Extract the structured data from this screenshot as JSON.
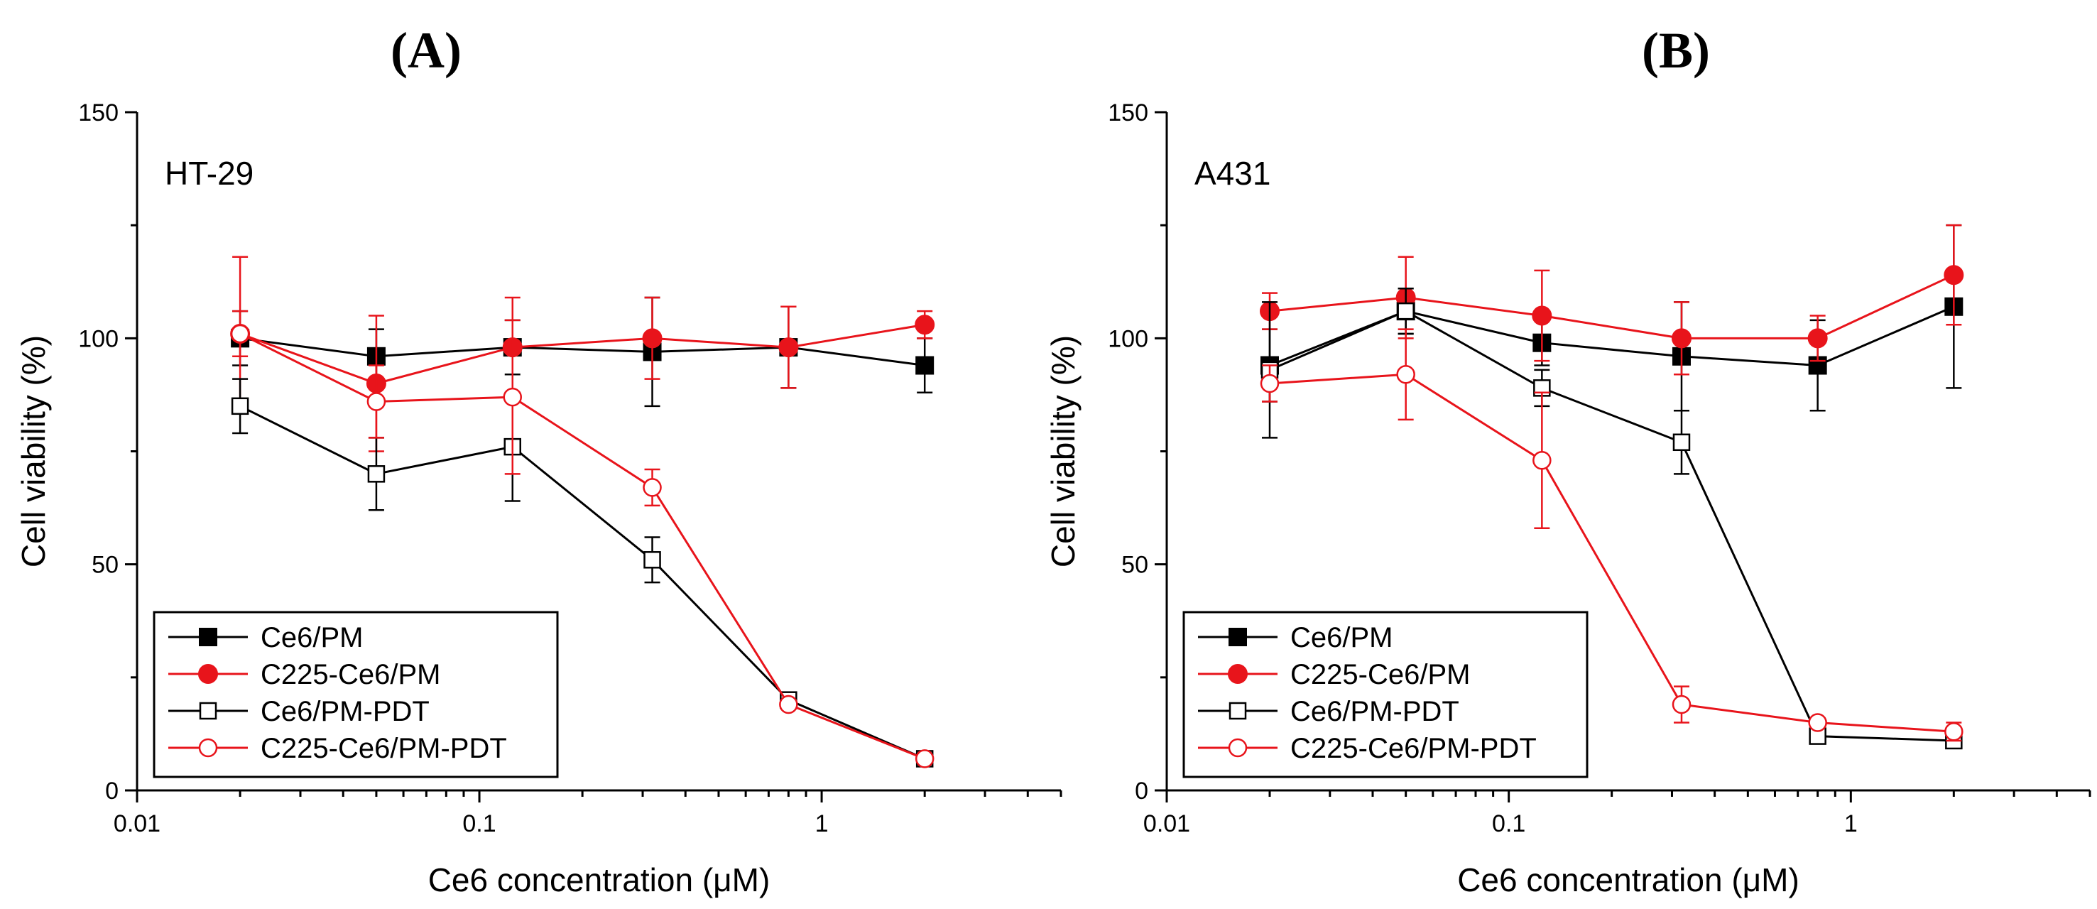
{
  "chart_data": [
    {
      "type": "line",
      "panel_label": "A",
      "cell_line": "HT-29",
      "xlabel": "Ce6 concentration (μM)",
      "ylabel": "Cell viability (%)",
      "xscale": "log",
      "xlim": [
        0.01,
        5
      ],
      "ylim": [
        0,
        150
      ],
      "x_ticks": [
        0.01,
        0.1,
        1
      ],
      "x_tick_labels": [
        "0.01",
        "0.1",
        "1"
      ],
      "y_ticks": [
        0,
        50,
        100,
        150
      ],
      "y_tick_labels": [
        "0",
        "50",
        "100",
        "150"
      ],
      "legend_position": "bottom-left",
      "x": [
        0.02,
        0.05,
        0.125,
        0.32,
        0.8,
        2
      ],
      "series": [
        {
          "name": "Ce6/PM",
          "color": "#000000",
          "marker": "square-filled",
          "values": [
            100,
            96,
            98,
            97,
            98,
            94
          ],
          "errors": [
            6,
            6,
            6,
            12,
            9,
            6
          ]
        },
        {
          "name": "C225-Ce6/PM",
          "color": "#e8141b",
          "marker": "circle-filled",
          "values": [
            101,
            90,
            98,
            100,
            98,
            103
          ],
          "errors": [
            17,
            15,
            11,
            9,
            9,
            3
          ]
        },
        {
          "name": "Ce6/PM-PDT",
          "color": "#000000",
          "marker": "square-open",
          "values": [
            85,
            70,
            76,
            51,
            20,
            7
          ],
          "errors": [
            6,
            8,
            12,
            5,
            1,
            1
          ]
        },
        {
          "name": "C225-Ce6/PM-PDT",
          "color": "#e8141b",
          "marker": "circle-open",
          "values": [
            101,
            86,
            87,
            67,
            19,
            7
          ],
          "errors": [
            5,
            8,
            17,
            4,
            1,
            1
          ]
        }
      ]
    },
    {
      "type": "line",
      "panel_label": "B",
      "cell_line": "A431",
      "xlabel": "Ce6 concentration (μM)",
      "ylabel": "Cell viability (%)",
      "xscale": "log",
      "xlim": [
        0.01,
        5
      ],
      "ylim": [
        0,
        150
      ],
      "x_ticks": [
        0.01,
        0.1,
        1
      ],
      "x_tick_labels": [
        "0.01",
        "0.1",
        "1"
      ],
      "y_ticks": [
        0,
        50,
        100,
        150
      ],
      "y_tick_labels": [
        "0",
        "50",
        "100",
        "150"
      ],
      "legend_position": "bottom-left",
      "x": [
        0.02,
        0.05,
        0.125,
        0.32,
        0.8,
        2
      ],
      "series": [
        {
          "name": "Ce6/PM",
          "color": "#000000",
          "marker": "square-filled",
          "values": [
            94,
            106,
            99,
            96,
            94,
            107
          ],
          "errors": [
            8,
            5,
            5,
            12,
            10,
            18
          ]
        },
        {
          "name": "C225-Ce6/PM",
          "color": "#e8141b",
          "marker": "circle-filled",
          "values": [
            106,
            109,
            105,
            100,
            100,
            114
          ],
          "errors": [
            4,
            9,
            10,
            8,
            5,
            11
          ]
        },
        {
          "name": "Ce6/PM-PDT",
          "color": "#000000",
          "marker": "square-open",
          "values": [
            93,
            106,
            89,
            77,
            12,
            11
          ],
          "errors": [
            15,
            5,
            4,
            7,
            1,
            1
          ]
        },
        {
          "name": "C225-Ce6/PM-PDT",
          "color": "#e8141b",
          "marker": "circle-open",
          "values": [
            90,
            92,
            73,
            19,
            15,
            13
          ],
          "errors": [
            4,
            10,
            15,
            4,
            1,
            2
          ]
        }
      ]
    }
  ]
}
